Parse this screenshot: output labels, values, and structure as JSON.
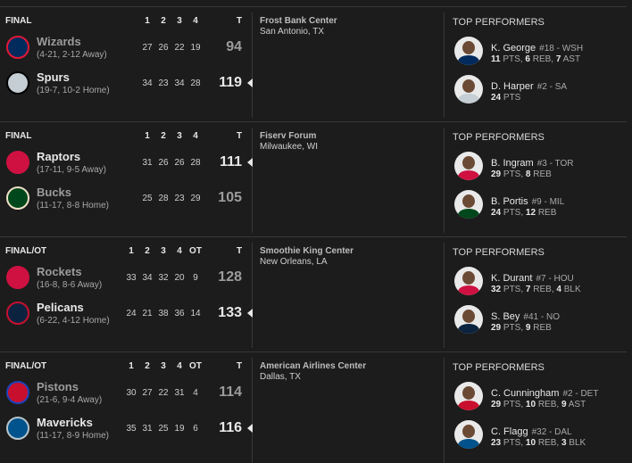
{
  "games": [
    {
      "status": "FINAL",
      "periods": [
        "1",
        "2",
        "3",
        "4"
      ],
      "total_label": "T",
      "teams": [
        {
          "name": "Wizards",
          "record": "(4-21, 2-12 Away)",
          "scores": [
            27,
            26,
            22,
            19
          ],
          "total": 94,
          "winner": false,
          "color": "#002b5c",
          "accent": "#e31837"
        },
        {
          "name": "Spurs",
          "record": "(19-7, 10-2 Home)",
          "scores": [
            34,
            23,
            34,
            28
          ],
          "total": 119,
          "winner": true,
          "color": "#c4ced4",
          "accent": "#000000"
        }
      ],
      "venue": "Frost Bank Center",
      "city": "San Antonio, TX",
      "performers_title": "TOP PERFORMERS",
      "performers": [
        {
          "name": "K. George",
          "detail": "#18 - WSH",
          "stats": "11 PTS, 6 REB, 7 AST"
        },
        {
          "name": "D. Harper",
          "detail": "#2 - SA",
          "stats": "24 PTS"
        }
      ]
    },
    {
      "status": "FINAL",
      "periods": [
        "1",
        "2",
        "3",
        "4"
      ],
      "total_label": "T",
      "teams": [
        {
          "name": "Raptors",
          "record": "(17-11, 9-5 Away)",
          "scores": [
            31,
            26,
            26,
            28
          ],
          "total": 111,
          "winner": true,
          "color": "#ce1141",
          "accent": "#ce1141"
        },
        {
          "name": "Bucks",
          "record": "(11-17, 8-8 Home)",
          "scores": [
            25,
            28,
            23,
            29
          ],
          "total": 105,
          "winner": false,
          "color": "#00471b",
          "accent": "#eee1c6"
        }
      ],
      "venue": "Fiserv Forum",
      "city": "Milwaukee, WI",
      "performers_title": "TOP PERFORMERS",
      "performers": [
        {
          "name": "B. Ingram",
          "detail": "#3 - TOR",
          "stats": "29 PTS, 8 REB"
        },
        {
          "name": "B. Portis",
          "detail": "#9 - MIL",
          "stats": "24 PTS, 12 REB"
        }
      ]
    },
    {
      "status": "FINAL/OT",
      "periods": [
        "1",
        "2",
        "3",
        "4",
        "OT"
      ],
      "total_label": "T",
      "teams": [
        {
          "name": "Rockets",
          "record": "(16-8, 8-6 Away)",
          "scores": [
            33,
            34,
            32,
            20,
            9
          ],
          "total": 128,
          "winner": false,
          "color": "#ce1141",
          "accent": "#ce1141"
        },
        {
          "name": "Pelicans",
          "record": "(6-22, 4-12 Home)",
          "scores": [
            24,
            21,
            38,
            36,
            14
          ],
          "total": 133,
          "winner": true,
          "color": "#0c2340",
          "accent": "#c8102e"
        }
      ],
      "venue": "Smoothie King Center",
      "city": "New Orleans, LA",
      "performers_title": "TOP PERFORMERS",
      "performers": [
        {
          "name": "K. Durant",
          "detail": "#7 - HOU",
          "stats": "32 PTS, 7 REB, 4 BLK"
        },
        {
          "name": "S. Bey",
          "detail": "#41 - NO",
          "stats": "29 PTS, 9 REB"
        }
      ]
    },
    {
      "status": "FINAL/OT",
      "periods": [
        "1",
        "2",
        "3",
        "4",
        "OT"
      ],
      "total_label": "T",
      "teams": [
        {
          "name": "Pistons",
          "record": "(21-6, 9-4 Away)",
          "scores": [
            30,
            27,
            22,
            31,
            4
          ],
          "total": 114,
          "winner": false,
          "color": "#c8102e",
          "accent": "#1d42ba"
        },
        {
          "name": "Mavericks",
          "record": "(11-17, 8-9 Home)",
          "scores": [
            35,
            31,
            25,
            19,
            6
          ],
          "total": 116,
          "winner": true,
          "color": "#00538c",
          "accent": "#b8c4ca"
        }
      ],
      "venue": "American Airlines Center",
      "city": "Dallas, TX",
      "performers_title": "TOP PERFORMERS",
      "performers": [
        {
          "name": "C. Cunningham",
          "detail": "#2 - DET",
          "stats": "29 PTS, 10 REB, 9 AST"
        },
        {
          "name": "C. Flagg",
          "detail": "#32 - DAL",
          "stats": "23 PTS, 10 REB, 3 BLK"
        }
      ]
    }
  ]
}
